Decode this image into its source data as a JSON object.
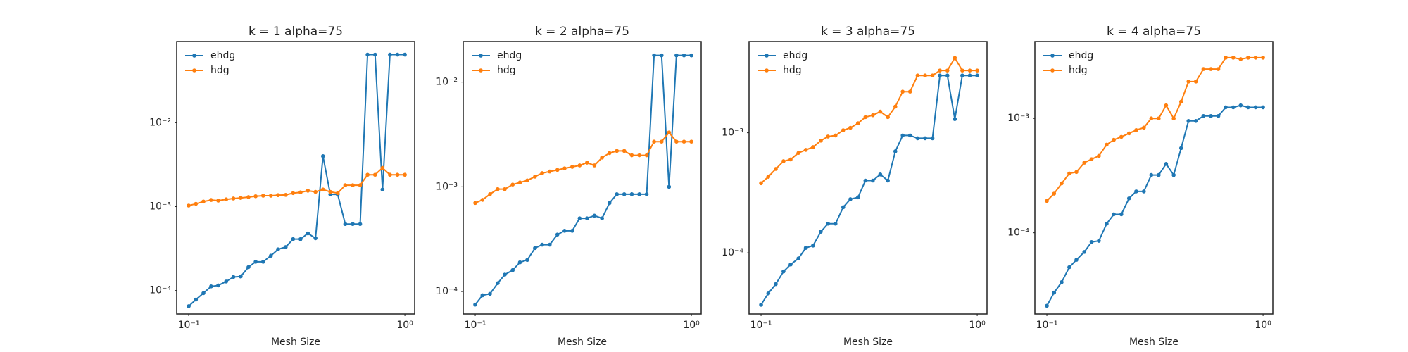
{
  "chart_data": [
    {
      "type": "line",
      "title": "k = 1 alpha=75",
      "xlabel": "Mesh Size",
      "xscale": "log",
      "yscale": "log",
      "legend": "upper left",
      "x": [
        0.1,
        0.108,
        0.117,
        0.127,
        0.137,
        0.149,
        0.161,
        0.174,
        0.189,
        0.204,
        0.221,
        0.24,
        0.259,
        0.281,
        0.304,
        0.329,
        0.356,
        0.386,
        0.418,
        0.452,
        0.489,
        0.53,
        0.574,
        0.621,
        0.672,
        0.728,
        0.788,
        0.853,
        0.924,
        1.0
      ],
      "series": [
        {
          "name": "ehdg",
          "color": "#1f77b4",
          "values": [
            6.5e-05,
            7.8e-05,
            9.3e-05,
            0.000112,
            0.000115,
            0.000128,
            0.000145,
            0.000147,
            0.00019,
            0.00022,
            0.00022,
            0.00026,
            0.00031,
            0.00033,
            0.00041,
            0.00041,
            0.00048,
            0.00042,
            0.004,
            0.0014,
            0.0014,
            0.00062,
            0.00062,
            0.00062,
            0.065,
            0.065,
            0.0016,
            0.065,
            0.065,
            0.065
          ]
        },
        {
          "name": "hdg",
          "color": "#ff7f0e",
          "values": [
            0.00103,
            0.00108,
            0.00115,
            0.0012,
            0.00118,
            0.00122,
            0.00125,
            0.00127,
            0.0013,
            0.00133,
            0.00135,
            0.00135,
            0.00137,
            0.00138,
            0.00145,
            0.00148,
            0.00155,
            0.0015,
            0.0016,
            0.0015,
            0.00145,
            0.0018,
            0.0018,
            0.0018,
            0.0024,
            0.0024,
            0.0029,
            0.0024,
            0.0024,
            0.0024
          ]
        }
      ],
      "xlim": [
        0.088,
        1.11
      ],
      "ylim": [
        5.25e-05,
        0.093
      ],
      "xticks": [
        {
          "value": 0.1,
          "label": "10⁻¹"
        },
        {
          "value": 1,
          "label": "10⁰"
        }
      ],
      "yticks": [
        {
          "value": 0.0001,
          "label": "10⁻⁴"
        },
        {
          "value": 0.001,
          "label": "10⁻³"
        },
        {
          "value": 0.01,
          "label": "10⁻²"
        }
      ]
    },
    {
      "type": "line",
      "title": "k = 2 alpha=75",
      "xlabel": "Mesh Size",
      "xscale": "log",
      "yscale": "log",
      "legend": "upper left",
      "x": [
        0.1,
        0.108,
        0.117,
        0.127,
        0.137,
        0.149,
        0.161,
        0.174,
        0.189,
        0.204,
        0.221,
        0.24,
        0.259,
        0.281,
        0.304,
        0.329,
        0.356,
        0.386,
        0.418,
        0.452,
        0.489,
        0.53,
        0.574,
        0.621,
        0.672,
        0.728,
        0.788,
        0.853,
        0.924,
        1.0
      ],
      "series": [
        {
          "name": "ehdg",
          "color": "#1f77b4",
          "values": [
            7.5e-05,
            9.2e-05,
            9.5e-05,
            0.00012,
            0.000145,
            0.00016,
            0.00019,
            0.0002,
            0.00026,
            0.00028,
            0.00028,
            0.00035,
            0.00038,
            0.00038,
            0.0005,
            0.0005,
            0.00053,
            0.0005,
            0.0007,
            0.00085,
            0.00085,
            0.00085,
            0.00085,
            0.00085,
            0.018,
            0.018,
            0.001,
            0.018,
            0.018,
            0.018
          ]
        },
        {
          "name": "hdg",
          "color": "#ff7f0e",
          "values": [
            0.0007,
            0.00075,
            0.00085,
            0.00095,
            0.00095,
            0.00105,
            0.0011,
            0.00115,
            0.00125,
            0.00135,
            0.0014,
            0.00145,
            0.0015,
            0.00155,
            0.0016,
            0.0017,
            0.0016,
            0.0019,
            0.0021,
            0.0022,
            0.0022,
            0.002,
            0.002,
            0.002,
            0.0027,
            0.0027,
            0.0033,
            0.0027,
            0.0027,
            0.0027
          ]
        }
      ],
      "xlim": [
        0.088,
        1.11
      ],
      "ylim": [
        6.1e-05,
        0.0244
      ],
      "xticks": [
        {
          "value": 0.1,
          "label": "10⁻¹"
        },
        {
          "value": 1,
          "label": "10⁰"
        }
      ],
      "yticks": [
        {
          "value": 0.0001,
          "label": "10⁻⁴"
        },
        {
          "value": 0.001,
          "label": "10⁻³"
        },
        {
          "value": 0.01,
          "label": "10⁻²"
        }
      ]
    },
    {
      "type": "line",
      "title": "k = 3 alpha=75",
      "xlabel": "Mesh Size",
      "xscale": "log",
      "yscale": "log",
      "legend": "upper left",
      "x": [
        0.1,
        0.108,
        0.117,
        0.127,
        0.137,
        0.149,
        0.161,
        0.174,
        0.189,
        0.204,
        0.221,
        0.24,
        0.259,
        0.281,
        0.304,
        0.329,
        0.356,
        0.386,
        0.418,
        0.452,
        0.489,
        0.53,
        0.574,
        0.621,
        0.672,
        0.728,
        0.788,
        0.853,
        0.924,
        1.0
      ],
      "series": [
        {
          "name": "ehdg",
          "color": "#1f77b4",
          "values": [
            3.7e-05,
            4.6e-05,
            5.5e-05,
            7e-05,
            8e-05,
            9e-05,
            0.00011,
            0.000115,
            0.00015,
            0.000175,
            0.000175,
            0.00024,
            0.00028,
            0.00029,
            0.0004,
            0.0004,
            0.00045,
            0.0004,
            0.0007,
            0.00095,
            0.00095,
            0.0009,
            0.0009,
            0.0009,
            0.003,
            0.003,
            0.0013,
            0.003,
            0.003,
            0.003
          ]
        },
        {
          "name": "hdg",
          "color": "#ff7f0e",
          "values": [
            0.00038,
            0.00043,
            0.0005,
            0.00058,
            0.0006,
            0.00068,
            0.00072,
            0.00076,
            0.00086,
            0.00093,
            0.00095,
            0.00105,
            0.0011,
            0.0012,
            0.00135,
            0.0014,
            0.0015,
            0.00135,
            0.00165,
            0.0022,
            0.0022,
            0.003,
            0.003,
            0.003,
            0.0033,
            0.0033,
            0.0042,
            0.0033,
            0.0033,
            0.0033
          ]
        }
      ],
      "xlim": [
        0.088,
        1.11
      ],
      "ylim": [
        3.1e-05,
        0.00575
      ],
      "xticks": [
        {
          "value": 0.1,
          "label": "10⁻¹"
        },
        {
          "value": 1,
          "label": "10⁰"
        }
      ],
      "yticks": [
        {
          "value": 0.0001,
          "label": "10⁻⁴"
        },
        {
          "value": 0.001,
          "label": "10⁻³"
        }
      ]
    },
    {
      "type": "line",
      "title": "k = 4 alpha=75",
      "xlabel": "Mesh Size",
      "xscale": "log",
      "yscale": "log",
      "legend": "upper left",
      "x": [
        0.1,
        0.108,
        0.117,
        0.127,
        0.137,
        0.149,
        0.161,
        0.174,
        0.189,
        0.204,
        0.221,
        0.24,
        0.259,
        0.281,
        0.304,
        0.329,
        0.356,
        0.386,
        0.418,
        0.452,
        0.489,
        0.53,
        0.574,
        0.621,
        0.672,
        0.728,
        0.788,
        0.853,
        0.924,
        1.0
      ],
      "series": [
        {
          "name": "ehdg",
          "color": "#1f77b4",
          "values": [
            2.3e-05,
            3e-05,
            3.7e-05,
            5e-05,
            5.8e-05,
            6.8e-05,
            8.3e-05,
            8.5e-05,
            0.00012,
            0.000145,
            0.000145,
            0.0002,
            0.00023,
            0.00023,
            0.00032,
            0.00032,
            0.0004,
            0.00032,
            0.00055,
            0.00095,
            0.00095,
            0.00105,
            0.00105,
            0.00105,
            0.00125,
            0.00125,
            0.0013,
            0.00125,
            0.00125,
            0.00125
          ]
        },
        {
          "name": "hdg",
          "color": "#ff7f0e",
          "values": [
            0.00019,
            0.00022,
            0.00027,
            0.00033,
            0.00034,
            0.00041,
            0.00044,
            0.00047,
            0.00059,
            0.00065,
            0.00069,
            0.00074,
            0.00079,
            0.00083,
            0.001,
            0.001,
            0.0013,
            0.001,
            0.0014,
            0.0021,
            0.0021,
            0.0027,
            0.0027,
            0.0027,
            0.0034,
            0.0034,
            0.0033,
            0.0034,
            0.0034,
            0.0034
          ]
        }
      ],
      "xlim": [
        0.088,
        1.11
      ],
      "ylim": [
        1.95e-05,
        0.0047
      ],
      "xticks": [
        {
          "value": 0.1,
          "label": "10⁻¹"
        },
        {
          "value": 1,
          "label": "10⁰"
        }
      ],
      "yticks": [
        {
          "value": 0.0001,
          "label": "10⁻⁴"
        },
        {
          "value": 0.001,
          "label": "10⁻³"
        }
      ]
    }
  ]
}
